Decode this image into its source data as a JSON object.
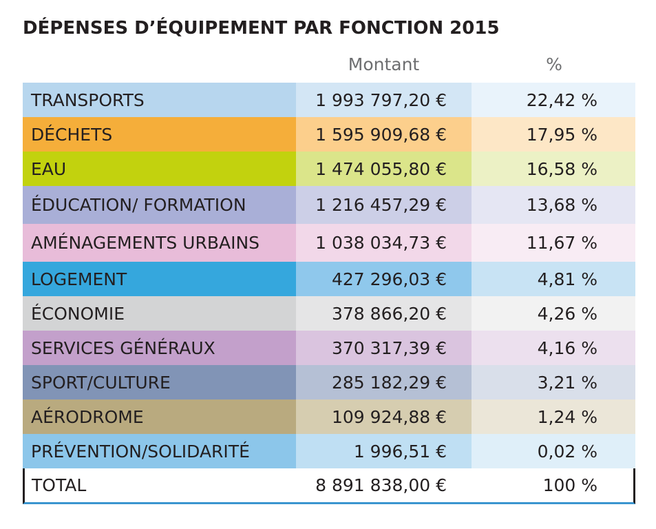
{
  "title": "DÉPENSES D’ÉQUIPEMENT PAR FONCTION 2015",
  "chart_data": {
    "type": "table",
    "title": "DÉPENSES D’ÉQUIPEMENT PAR FONCTION 2015",
    "columns": [
      "",
      "Montant",
      "%"
    ],
    "rows": [
      {
        "label": "TRANSPORTS",
        "amount": "1 993 797,20 €",
        "pct": "22,42 %",
        "value": 1993797.2,
        "percent": 22.42,
        "colors": [
          "#b7d6ee",
          "#d3e6f5",
          "#e9f3fb"
        ]
      },
      {
        "label": "DÉCHETS",
        "amount": "1 595 909,68 €",
        "pct": "17,95 %",
        "value": 1595909.68,
        "percent": 17.95,
        "colors": [
          "#f5ae3a",
          "#fccf8c",
          "#fde7c6"
        ]
      },
      {
        "label": "EAU",
        "amount": "1 474 055,80 €",
        "pct": "16,58 %",
        "value": 1474055.8,
        "percent": 16.58,
        "colors": [
          "#c2d20e",
          "#dbe58a",
          "#ecf1c5"
        ]
      },
      {
        "label": "ÉDUCATION/ FORMATION",
        "amount": "1 216 457,29 €",
        "pct": "13,68 %",
        "value": 1216457.29,
        "percent": 13.68,
        "colors": [
          "#a9afd7",
          "#cccfe7",
          "#e5e6f3"
        ]
      },
      {
        "label": "AMÉNAGEMENTS URBAINS",
        "amount": "1 038 034,73 €",
        "pct": "11,67 %",
        "value": 1038034.73,
        "percent": 11.67,
        "colors": [
          "#e8bcd9",
          "#f2d8e9",
          "#f8ecf4"
        ]
      },
      {
        "label": "LOGEMENT",
        "amount": "427 296,03 €",
        "pct": "4,81 %",
        "value": 427296.03,
        "percent": 4.81,
        "colors": [
          "#35a7dd",
          "#8fc8ec",
          "#c8e3f4"
        ]
      },
      {
        "label": "ÉCONOMIE",
        "amount": "378 866,20 €",
        "pct": "4,26 %",
        "value": 378866.2,
        "percent": 4.26,
        "colors": [
          "#d3d4d5",
          "#e5e5e6",
          "#f2f2f2"
        ]
      },
      {
        "label": "SERVICES GÉNÉRAUX",
        "amount": "370 317,39 €",
        "pct": "4,16 %",
        "value": 370317.39,
        "percent": 4.16,
        "colors": [
          "#c3a0cb",
          "#dac4df",
          "#ece0ee"
        ]
      },
      {
        "label": "SPORT/CULTURE",
        "amount": "285 182,29 €",
        "pct": "3,21 %",
        "value": 285182.29,
        "percent": 3.21,
        "colors": [
          "#8194b6",
          "#b5c0d5",
          "#d9dfea"
        ]
      },
      {
        "label": "AÉRODROME",
        "amount": "109 924,88 €",
        "pct": "1,24 %",
        "value": 109924.88,
        "percent": 1.24,
        "colors": [
          "#b9aa7f",
          "#d6cdb0",
          "#ebe6d8"
        ]
      },
      {
        "label": "PRÉVENTION/SOLIDARITÉ",
        "amount": "1 996,51 €",
        "pct": "0,02 %",
        "value": 1996.51,
        "percent": 0.02,
        "colors": [
          "#8cc6ea",
          "#bfdff3",
          "#dfeff9"
        ]
      }
    ],
    "total": {
      "label": "TOTAL",
      "amount": "8 891 838,00 €",
      "pct": "100 %",
      "value": 8891838.0,
      "percent": 100
    }
  }
}
